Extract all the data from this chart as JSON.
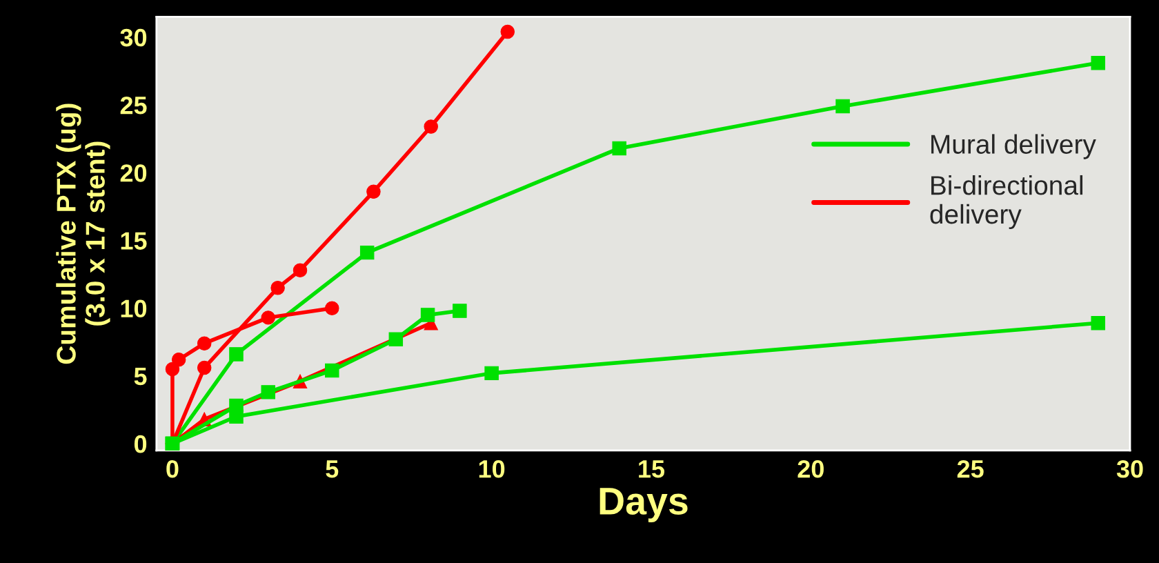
{
  "chart_data": {
    "type": "line",
    "xlabel": "Days",
    "ylabel": "Cumulative PTX (ug)\n(3.0 x 17 stent)",
    "xlim": [
      -0.5,
      30
    ],
    "xticks": [
      0,
      5,
      10,
      15,
      20,
      25,
      30
    ],
    "ylim": [
      -0.5,
      31.5
    ],
    "yticks": [
      0,
      5,
      10,
      15,
      20,
      25,
      30
    ],
    "grid": false,
    "legend": "right",
    "series": [
      {
        "name": "Mural delivery",
        "color": "#00e000",
        "marker": "square",
        "x": [
          0,
          2,
          6.1,
          14,
          21,
          29
        ],
        "values": [
          0,
          6.6,
          14.1,
          21.8,
          24.9,
          28.1
        ]
      },
      {
        "name": "Bi-directional\ndelivery",
        "color": "#ff0000",
        "marker": "circle",
        "x": [
          0,
          1,
          3.3,
          4,
          6.3,
          8.1,
          10.5
        ],
        "values": [
          0,
          5.6,
          11.5,
          12.8,
          18.6,
          23.4,
          30.4
        ]
      },
      {
        "color": "#ff0000",
        "marker": "circle",
        "x": [
          0,
          0,
          0.2,
          1,
          3,
          5
        ],
        "values": [
          0,
          5.5,
          6.2,
          7.4,
          9.3,
          10
        ]
      },
      {
        "color": "#ff0000",
        "marker": "triangle",
        "x": [
          0,
          1,
          4,
          8.1
        ],
        "values": [
          0,
          1.8,
          4.6,
          8.9
        ]
      },
      {
        "color": "#00e000",
        "marker": "square",
        "x": [
          0,
          2,
          3,
          5,
          7,
          8,
          9
        ],
        "values": [
          0,
          2.8,
          3.8,
          5.4,
          7.7,
          9.5,
          9.8
        ]
      },
      {
        "color": "#00e000",
        "marker": "square",
        "x": [
          0,
          2,
          10,
          29
        ],
        "values": [
          0,
          2,
          5.2,
          8.9
        ]
      }
    ]
  }
}
